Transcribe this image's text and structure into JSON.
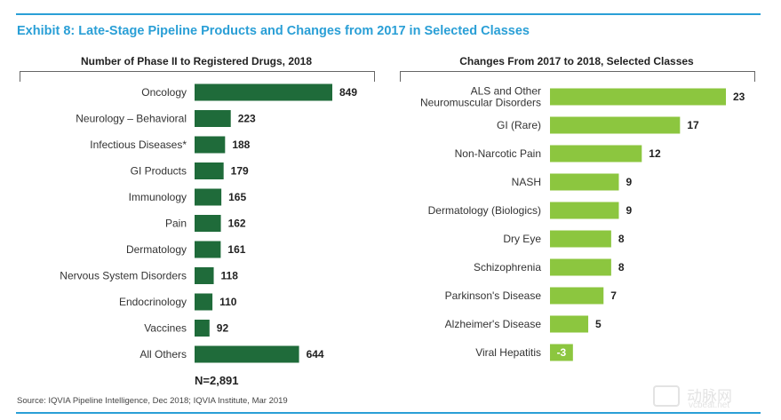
{
  "exhibit_title": "Exhibit 8: Late-Stage Pipeline Products and Changes from 2017 in Selected Classes",
  "left_panel_title": "Number of Phase II to Registered Drugs, 2018",
  "right_panel_title": "Changes From 2017 to 2018, Selected Classes",
  "n_label": "N=2,891",
  "source": "Source: IQVIA Pipeline Intelligence, Dec 2018; IQVIA Institute, Mar 2019",
  "watermark": {
    "cn": "动脉网",
    "en": "vcbeat.net"
  },
  "colors": {
    "dark_green": "#1f6b3a",
    "light_green": "#8cc63f",
    "title_blue": "#2a9fd6"
  },
  "chart_data": [
    {
      "type": "bar",
      "orientation": "horizontal",
      "title": "Number of Phase II to Registered Drugs, 2018",
      "categories": [
        "Oncology",
        "Neurology – Behavioral",
        "Infectious Diseases*",
        "GI Products",
        "Immunology",
        "Pain",
        "Dermatology",
        "Nervous System Disorders",
        "Endocrinology",
        "Vaccines",
        "All Others"
      ],
      "values": [
        849,
        223,
        188,
        179,
        165,
        162,
        161,
        118,
        110,
        92,
        644
      ],
      "color": "#1f6b3a"
    },
    {
      "type": "bar",
      "orientation": "horizontal",
      "title": "Changes From 2017 to 2018, Selected Classes",
      "categories": [
        "ALS and Other\nNeuromuscular Disorders",
        "GI (Rare)",
        "Non-Narcotic Pain",
        "NASH",
        "Dermatology (Biologics)",
        "Dry Eye",
        "Schizophrenia",
        "Parkinson's Disease",
        "Alzheimer's Disease",
        "Viral Hepatitis"
      ],
      "values": [
        23,
        17,
        12,
        9,
        9,
        8,
        8,
        7,
        5,
        -3
      ],
      "color": "#8cc63f"
    }
  ]
}
